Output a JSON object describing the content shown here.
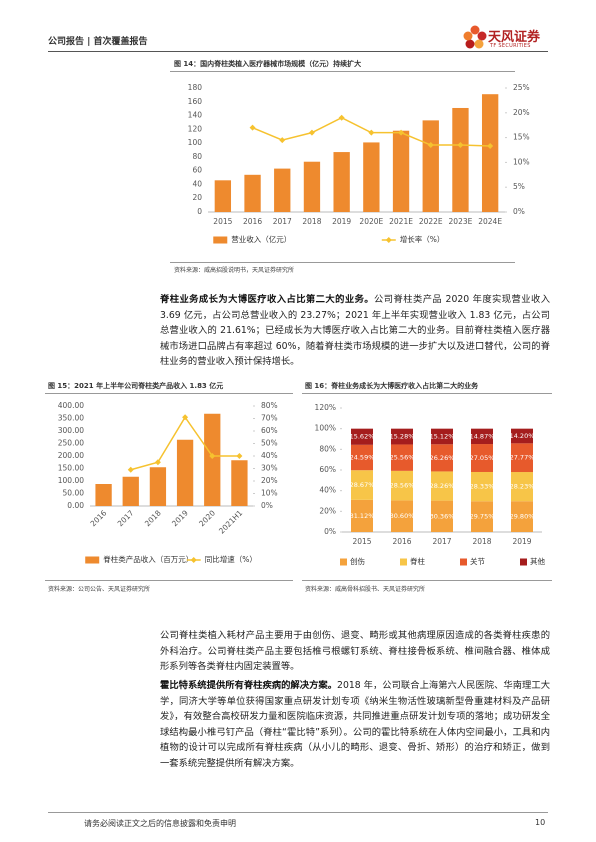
{
  "header": {
    "title": "公司报告 | 首次覆盖报告",
    "logo": "天风证券",
    "logo_en": "TF SECURITIES"
  },
  "chart_data": [
    {
      "type": "combo",
      "title": "图 14：国内脊柱类植入医疗器械市场规模（亿元）持续扩大",
      "source": "资料来源：威高招股说明书，天风证券研究所",
      "categories": [
        "2015",
        "2016",
        "2017",
        "2018",
        "2019",
        "2020E",
        "2021E",
        "2022E",
        "2023E",
        "2024E"
      ],
      "series": [
        {
          "name": "营业收入（亿元）",
          "color": "#ee8a2e",
          "values": [
            46,
            54,
            63,
            73,
            87,
            101,
            118,
            133,
            151,
            171
          ]
        },
        {
          "name": "增长率（%）",
          "color": "#f6c22f",
          "axis": "y2",
          "values": [
            null,
            17,
            14.5,
            16,
            19,
            16,
            16,
            13.5,
            13.5,
            13.3
          ]
        }
      ],
      "ylim": [
        0,
        180
      ],
      "yticks": [
        0,
        20,
        40,
        60,
        80,
        100,
        120,
        140,
        160,
        180
      ],
      "y2lim": [
        0,
        25
      ],
      "y2ticks": [
        {
          "value": 0,
          "label": "0%"
        },
        {
          "value": 5,
          "label": "5%"
        },
        {
          "value": 10,
          "label": "10%"
        },
        {
          "value": 15,
          "label": "15%"
        },
        {
          "value": 20,
          "label": "20%"
        },
        {
          "value": 25,
          "label": "25%"
        }
      ]
    },
    {
      "type": "combo",
      "title": "图 15：2021 年上半年公司脊柱类产品收入 1.83 亿元",
      "source": "资料来源：公司公告、天风证券研究所",
      "categories": [
        "2016",
        "2017",
        "2018",
        "2019",
        "2020",
        "2021H1"
      ],
      "series": [
        {
          "name": "脊柱类产品收入（百万元）",
          "color": "#ee8a2e",
          "values": [
            88,
            117,
            155,
            265,
            369,
            183
          ]
        },
        {
          "name": "同比增速（%）",
          "color": "#f6c22f",
          "axis": "y2",
          "values": [
            null,
            29,
            35,
            71,
            40,
            40
          ]
        }
      ],
      "ylim": [
        0,
        400
      ],
      "yticks": [
        {
          "value": 0,
          "label": "0.00"
        },
        {
          "value": 50,
          "label": "50.00"
        },
        {
          "value": 100,
          "label": "100.00"
        },
        {
          "value": 150,
          "label": "150.00"
        },
        {
          "value": 200,
          "label": "200.00"
        },
        {
          "value": 250,
          "label": "250.00"
        },
        {
          "value": 300,
          "label": "300.00"
        },
        {
          "value": 350,
          "label": "350.00"
        },
        {
          "value": 400,
          "label": "400.00"
        }
      ],
      "y2lim": [
        0,
        80
      ],
      "y2ticks": [
        {
          "value": 0,
          "label": "0%"
        },
        {
          "value": 10,
          "label": "10%"
        },
        {
          "value": 20,
          "label": "20%"
        },
        {
          "value": 30,
          "label": "30%"
        },
        {
          "value": 40,
          "label": "40%"
        },
        {
          "value": 50,
          "label": "50%"
        },
        {
          "value": 60,
          "label": "60%"
        },
        {
          "value": 70,
          "label": "70%"
        },
        {
          "value": 80,
          "label": "80%"
        }
      ]
    },
    {
      "type": "stacked",
      "title": "图 16：脊柱业务成长为大博医疗收入占比第二大的业务",
      "source": "资料来源：威高骨科招股书、天风证券研究所",
      "categories": [
        "2015",
        "2016",
        "2017",
        "2018",
        "2019"
      ],
      "series": [
        {
          "name": "创伤",
          "color": "#f4a23c",
          "values": [
            31.12,
            30.6,
            30.36,
            29.75,
            29.8
          ],
          "value_labels": [
            "31.12%",
            "30.60%",
            "30.36%",
            "29.75%",
            "29.80%"
          ]
        },
        {
          "name": "脊柱",
          "color": "#f7c548",
          "values": [
            28.67,
            28.56,
            28.26,
            28.33,
            28.23
          ],
          "value_labels": [
            "28.67%",
            "28.56%",
            "28.26%",
            "28.33%",
            "28.23%"
          ]
        },
        {
          "name": "关节",
          "color": "#e75a2c",
          "values": [
            24.59,
            25.56,
            26.26,
            27.05,
            27.77
          ],
          "value_labels": [
            "24.59%",
            "25.56%",
            "26.26%",
            "27.05%",
            "27.77%"
          ]
        },
        {
          "name": "其他",
          "color": "#a51d1d",
          "values": [
            15.62,
            15.28,
            15.12,
            14.87,
            14.2
          ],
          "value_labels": [
            "15.62%",
            "15.28%",
            "15.12%",
            "14.87%",
            "14.20%"
          ]
        }
      ],
      "ylim": [
        0,
        120
      ],
      "yticks": [
        {
          "value": 0,
          "label": "0%"
        },
        {
          "value": 20,
          "label": "20%"
        },
        {
          "value": 40,
          "label": "40%"
        },
        {
          "value": 60,
          "label": "60%"
        },
        {
          "value": 80,
          "label": "80%"
        },
        {
          "value": 100,
          "label": "100%"
        },
        {
          "value": 120,
          "label": "120%"
        }
      ]
    }
  ],
  "paragraphs": [
    {
      "lead": "脊柱业务成长为大博医疗收入占比第二大的业务。",
      "text": "公司脊柱类产品 2020 年度实现营业收入 3.69 亿元，占公司总营业收入的 23.27%；2021 年上半年实现营业收入 1.83 亿元，占公司总营业收入的 21.61%；已经成长为大博医疗收入占比第二大的业务。目前脊柱类植入医疗器械市场进口品牌占有率超过 60%，随着脊柱类市场规模的进一步扩大以及进口替代，公司的脊柱业务的营业收入预计保持增长。"
    },
    {
      "text": "公司脊柱类植入耗材产品主要用于由创伤、退变、畸形或其他病理原因造成的各类脊柱疾患的外科治疗。公司脊柱类产品主要包括椎弓根螺钉系统、脊柱接骨板系统、椎间融合器、椎体成形系列等各类脊柱内固定装置等。"
    },
    {
      "lead": "霍比特系统提供所有脊柱疾病的解决方案。",
      "text": "2018 年，公司联合上海第六人民医院、华南理工大学，同济大学等单位获得国家重点研发计划专项《纳米生物活性玻璃新型骨重建材料及产品研发》，有效整合高校研发力量和医院临床资源，共同推进重点研发计划专项的落地；成功研发全球结构最小椎弓钉产品（脊柱“霍比特”系列）。公司的霍比特系统在人体内空间最小，工具和内植物的设计可以完成所有脊柱疾病（从小儿的畸形、退变、骨折、矫形）的治疗和矫正，做到一套系统完整提供所有解决方案。"
    }
  ],
  "footer": {
    "disclaimer": "请务必阅读正文之后的信息披露和免责申明",
    "page": "10"
  }
}
